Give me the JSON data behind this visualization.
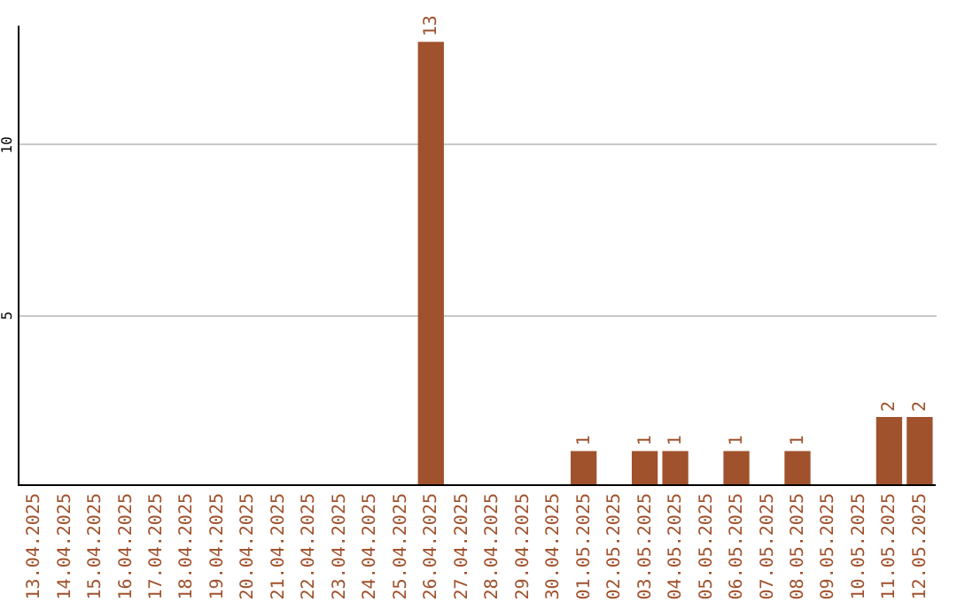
{
  "chart_data": {
    "type": "bar",
    "categories": [
      "13.04.2025",
      "14.04.2025",
      "15.04.2025",
      "16.04.2025",
      "17.04.2025",
      "18.04.2025",
      "19.04.2025",
      "20.04.2025",
      "21.04.2025",
      "22.04.2025",
      "23.04.2025",
      "24.04.2025",
      "25.04.2025",
      "26.04.2025",
      "27.04.2025",
      "28.04.2025",
      "29.04.2025",
      "30.04.2025",
      "01.05.2025",
      "02.05.2025",
      "03.05.2025",
      "04.05.2025",
      "05.05.2025",
      "06.05.2025",
      "07.05.2025",
      "08.05.2025",
      "09.05.2025",
      "10.05.2025",
      "11.05.2025",
      "12.05.2025"
    ],
    "values": [
      0,
      0,
      0,
      0,
      0,
      0,
      0,
      0,
      0,
      0,
      0,
      0,
      0,
      13,
      0,
      0,
      0,
      0,
      1,
      0,
      1,
      1,
      0,
      1,
      0,
      1,
      0,
      0,
      2,
      2
    ],
    "value_labels": [
      null,
      null,
      null,
      null,
      null,
      null,
      null,
      null,
      null,
      null,
      null,
      null,
      null,
      "13",
      null,
      null,
      null,
      null,
      "1",
      null,
      "1",
      "1",
      null,
      "1",
      null,
      "1",
      null,
      null,
      "2",
      "2"
    ],
    "color": "#a0522d",
    "ylim": [
      0,
      13.5
    ],
    "yticks": [
      5,
      10
    ],
    "grid": "y"
  }
}
